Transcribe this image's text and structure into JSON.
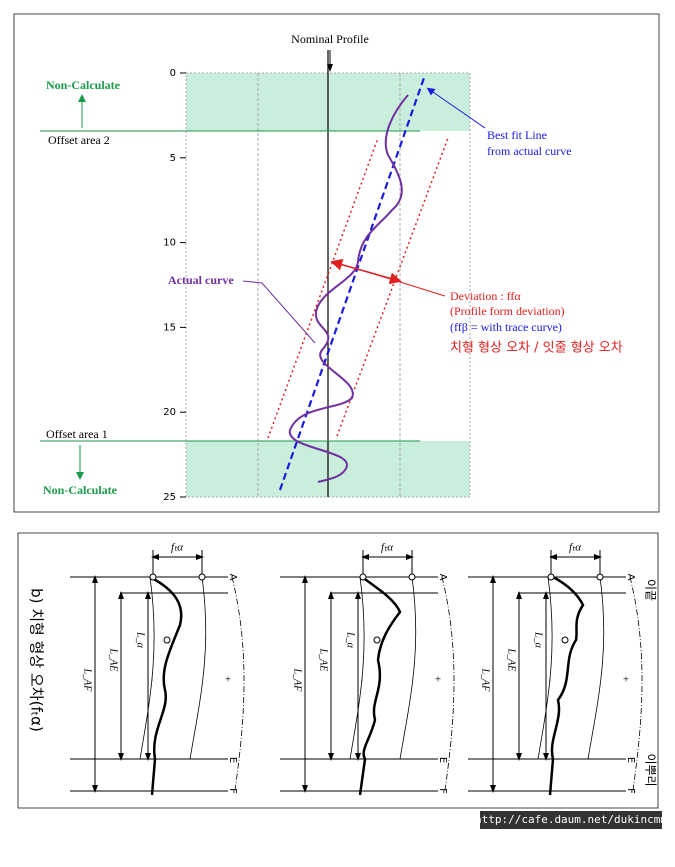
{
  "top": {
    "nominal": "Nominal Profile",
    "non_calc_top": "Non-Calculate",
    "offset2": "Offset area 2",
    "offset1": "Offset area 1",
    "non_calc_bottom": "Non-Calculate",
    "best_fit_1": "Best fit Line",
    "best_fit_2": "from actual curve",
    "actual": "Actual curve",
    "dev_1": "Deviation :   ffα",
    "dev_2": "(Profile form deviation)",
    "dev_3": "(ffβ = with trace curve)",
    "dev_ko": "치형 형상 오차 / 잇줄 형상 오차",
    "ticks": [
      0,
      5,
      10,
      15,
      20,
      25
    ]
  },
  "bottom": {
    "title": "b) 치형 형상 오차(fₜα)",
    "tip": "이끝",
    "root": "이뿌리",
    "panels": [
      {
        "ft": "fₜα",
        "A": "A",
        "E": "E",
        "F": "F",
        "laf": "L_AF",
        "lae": "L_AE",
        "la": "L_α",
        "minus": "-",
        "plus": "+"
      },
      {
        "ft": "fₜα",
        "A": "A",
        "E": "E",
        "F": "F",
        "laf": "L_AF",
        "lae": "L_AE",
        "la": "L_α",
        "minus": "-",
        "plus": "+"
      },
      {
        "ft": "fₜα",
        "A": "A",
        "E": "E",
        "F": "F",
        "laf": "L_AF",
        "lae": "L_AE",
        "la": "L_α",
        "minus": "-",
        "plus": "+"
      }
    ]
  },
  "url": "http://cafe.daum.net/dukincmm"
}
